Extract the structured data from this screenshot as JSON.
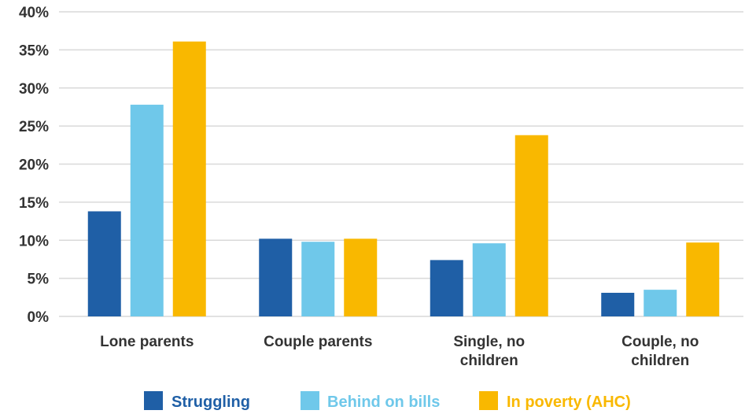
{
  "chart_data": {
    "type": "bar",
    "categories": [
      [
        "Lone parents"
      ],
      [
        "Couple parents"
      ],
      [
        "Single, no",
        "children"
      ],
      [
        "Couple, no",
        "children"
      ]
    ],
    "series": [
      {
        "name": "Struggling",
        "color": "#1f5fa6",
        "values": [
          13.8,
          10.2,
          7.4,
          3.1
        ]
      },
      {
        "name": "Behind on bills",
        "color": "#6fc8ea",
        "values": [
          27.8,
          9.8,
          9.6,
          3.5
        ]
      },
      {
        "name": "In poverty (AHC)",
        "color": "#f9b800",
        "values": [
          36.1,
          10.2,
          23.8,
          9.7
        ]
      }
    ],
    "yticks": [
      "0%",
      "5%",
      "10%",
      "15%",
      "20%",
      "25%",
      "30%",
      "35%",
      "40%"
    ],
    "ylim": [
      0,
      40
    ],
    "ystep": 5,
    "grid": true,
    "legend_position": "bottom-center",
    "gridline_color": "#d9d9d9",
    "label_color": "#333333"
  }
}
